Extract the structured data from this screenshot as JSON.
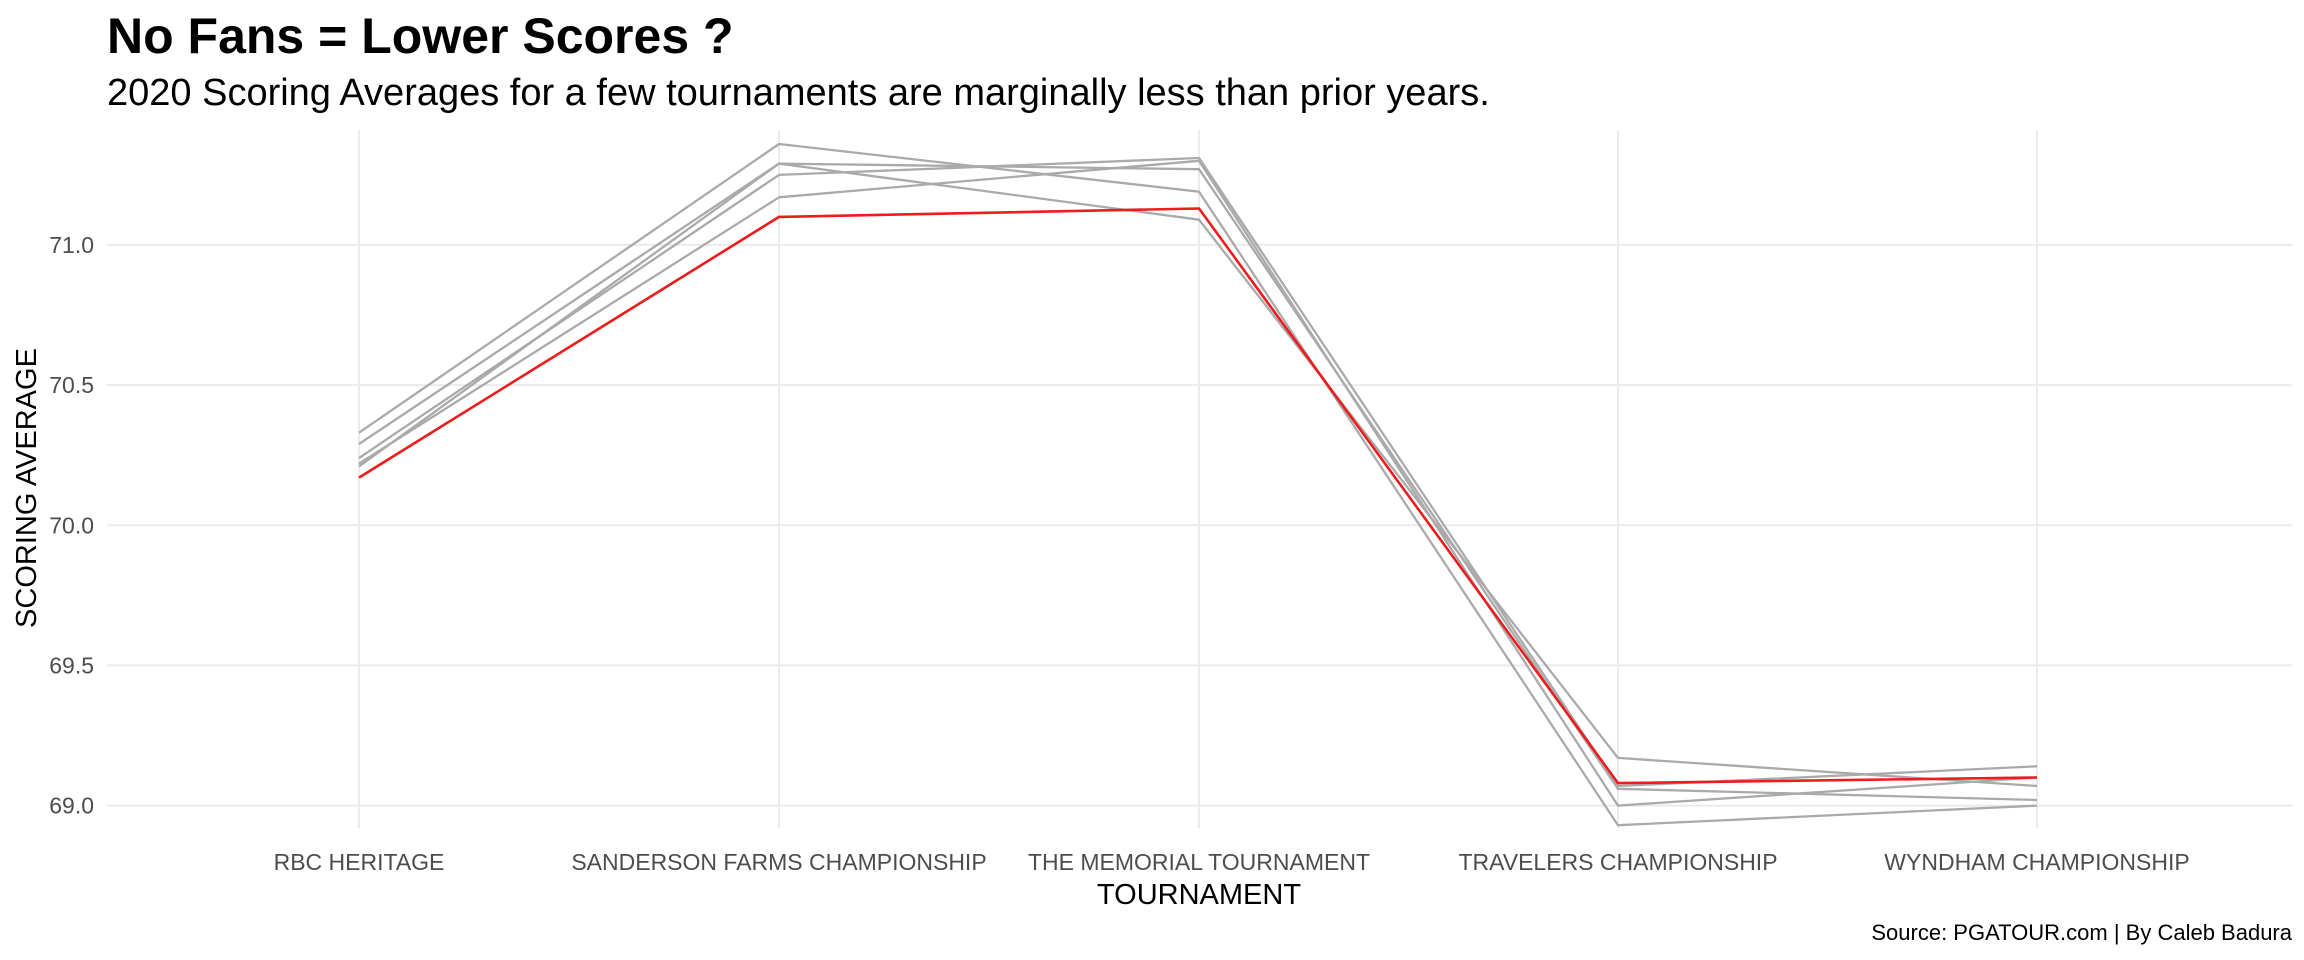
{
  "chart_data": {
    "type": "line",
    "title": "No Fans = Lower Scores ?",
    "subtitle": "2020 Scoring Averages for a few tournaments are marginally less than prior years.",
    "caption": "Source: PGATOUR.com | By Caleb Badura",
    "xlabel": "TOURNAMENT",
    "ylabel": "SCORING AVERAGE",
    "categories": [
      "RBC HERITAGE",
      "SANDERSON FARMS CHAMPIONSHIP",
      "THE MEMORIAL TOURNAMENT",
      "TRAVELERS CHAMPIONSHIP",
      "WYNDHAM CHAMPIONSHIP"
    ],
    "yticks": [
      "69.0",
      "69.5",
      "70.0",
      "70.5",
      "71.0"
    ],
    "ylim": [
      68.92,
      71.41
    ],
    "grid": true,
    "highlight_color": "#ee1c1c",
    "other_color": "#aaaaaa",
    "series": [
      {
        "highlight": false,
        "values": [
          70.33,
          71.36,
          71.19,
          68.93,
          69.0
        ]
      },
      {
        "highlight": false,
        "values": [
          70.29,
          71.29,
          71.09,
          69.17,
          69.07
        ]
      },
      {
        "highlight": false,
        "values": [
          70.24,
          71.25,
          71.31,
          69.07,
          69.14
        ]
      },
      {
        "highlight": false,
        "values": [
          70.22,
          71.17,
          71.3,
          69.0,
          69.1
        ]
      },
      {
        "highlight": false,
        "values": [
          70.21,
          71.29,
          71.27,
          69.06,
          69.02
        ]
      },
      {
        "highlight": true,
        "values": [
          70.17,
          71.1,
          71.13,
          69.08,
          69.1
        ]
      }
    ]
  }
}
